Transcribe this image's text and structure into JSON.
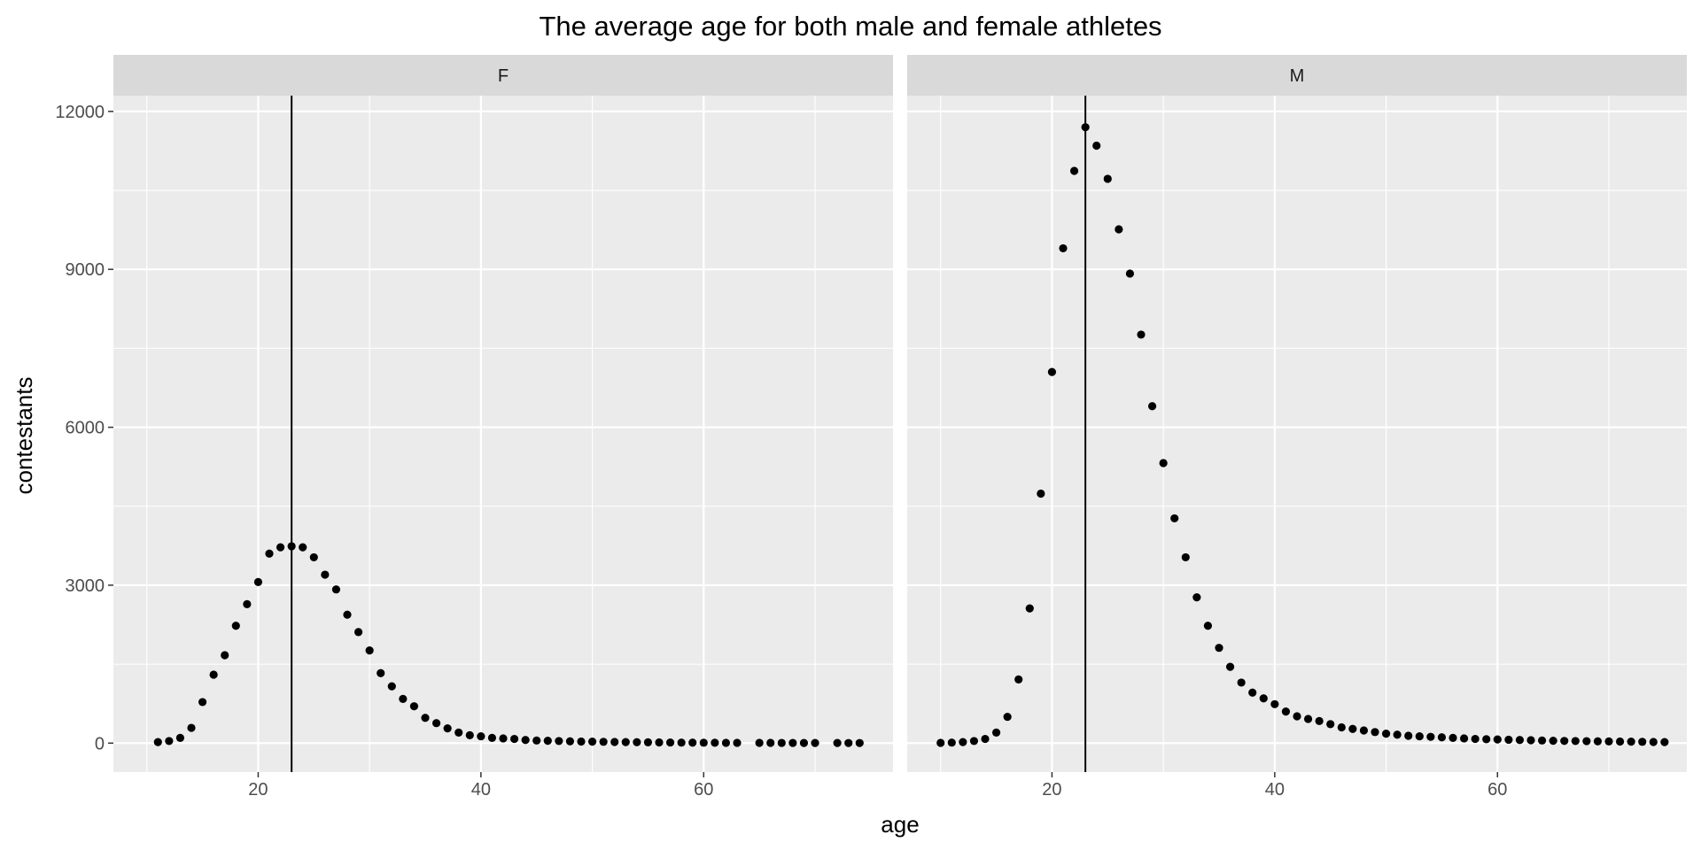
{
  "chart_data": {
    "type": "scatter",
    "title": "The average age for both male and female athletes",
    "xlabel": "age",
    "ylabel": "contestants",
    "xlim": [
      7,
      77
    ],
    "ylim": [
      -550,
      12300
    ],
    "x_ticks": [
      20,
      40,
      60
    ],
    "x_tick_labels": [
      "20",
      "40",
      "60"
    ],
    "y_ticks": [
      0,
      3000,
      6000,
      9000,
      12000
    ],
    "y_tick_labels": [
      "0",
      "3000",
      "6000",
      "9000",
      "12000"
    ],
    "grid": true,
    "colors": {
      "panel_background": "#ebebeb",
      "strip_background": "#d9d9d9",
      "grid_major": "#ffffff",
      "points": "#000000",
      "reference_line": "#000000"
    },
    "panels": [
      {
        "facet": "F",
        "mean_age": 23,
        "x": [
          11,
          12,
          13,
          14,
          15,
          16,
          17,
          18,
          19,
          20,
          21,
          22,
          23,
          24,
          25,
          26,
          27,
          28,
          29,
          30,
          31,
          32,
          33,
          34,
          35,
          36,
          37,
          38,
          39,
          40,
          41,
          42,
          43,
          44,
          45,
          46,
          47,
          48,
          49,
          50,
          51,
          52,
          53,
          54,
          55,
          56,
          57,
          58,
          59,
          60,
          61,
          62,
          63,
          65,
          66,
          67,
          68,
          69,
          70,
          72,
          73,
          74
        ],
        "y": [
          20,
          40,
          100,
          290,
          780,
          1300,
          1670,
          2230,
          2640,
          3060,
          3600,
          3720,
          3740,
          3720,
          3530,
          3200,
          2920,
          2440,
          2110,
          1760,
          1330,
          1080,
          840,
          700,
          480,
          380,
          280,
          200,
          150,
          130,
          100,
          90,
          80,
          60,
          50,
          45,
          40,
          35,
          30,
          28,
          25,
          22,
          20,
          18,
          16,
          14,
          12,
          10,
          9,
          8,
          7,
          6,
          6,
          5,
          5,
          4,
          4,
          3,
          3,
          3,
          2,
          2
        ]
      },
      {
        "facet": "M",
        "mean_age": 23,
        "x": [
          10,
          11,
          12,
          13,
          14,
          15,
          16,
          17,
          18,
          19,
          20,
          21,
          22,
          23,
          24,
          25,
          26,
          27,
          28,
          29,
          30,
          31,
          32,
          33,
          34,
          35,
          36,
          37,
          38,
          39,
          40,
          41,
          42,
          43,
          44,
          45,
          46,
          47,
          48,
          49,
          50,
          51,
          52,
          53,
          54,
          55,
          56,
          57,
          58,
          59,
          60,
          61,
          62,
          63,
          64,
          65,
          66,
          67,
          68,
          69,
          70,
          71,
          72,
          73,
          74,
          75
        ],
        "y": [
          5,
          10,
          20,
          40,
          80,
          200,
          500,
          1210,
          2560,
          4740,
          7050,
          9400,
          10870,
          11700,
          11350,
          10720,
          9760,
          8920,
          7760,
          6400,
          5320,
          4270,
          3530,
          2770,
          2230,
          1810,
          1450,
          1150,
          960,
          850,
          740,
          600,
          510,
          460,
          420,
          360,
          300,
          270,
          240,
          210,
          180,
          160,
          140,
          130,
          120,
          110,
          100,
          90,
          80,
          75,
          70,
          65,
          60,
          55,
          50,
          45,
          42,
          40,
          38,
          35,
          32,
          30,
          28,
          25,
          22,
          20
        ]
      }
    ]
  }
}
